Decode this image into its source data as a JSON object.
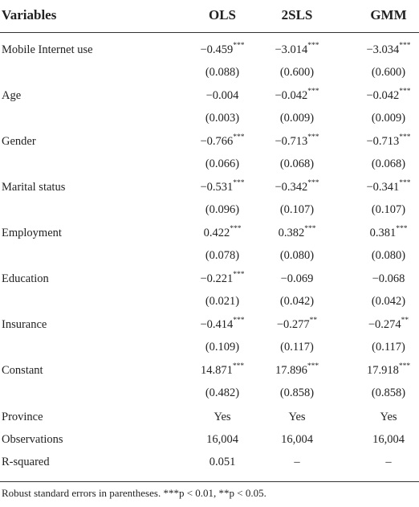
{
  "table": {
    "header": [
      "Variables",
      "OLS",
      "2SLS",
      "GMM"
    ],
    "variables": [
      {
        "name": "Mobile Internet use",
        "coef": [
          {
            "value": "−0.459",
            "stars": "***"
          },
          {
            "value": "−3.014",
            "stars": "***"
          },
          {
            "value": "−3.034",
            "stars": "***"
          }
        ],
        "se": [
          "(0.088)",
          "(0.600)",
          "(0.600)"
        ]
      },
      {
        "name": "Age",
        "coef": [
          {
            "value": "−0.004"
          },
          {
            "value": "−0.042",
            "stars": "***"
          },
          {
            "value": "−0.042",
            "stars": "***"
          }
        ],
        "se": [
          "(0.003)",
          "(0.009)",
          "(0.009)"
        ]
      },
      {
        "name": "Gender",
        "coef": [
          {
            "value": "−0.766",
            "stars": "***"
          },
          {
            "value": "−0.713",
            "stars": "***"
          },
          {
            "value": "−0.713",
            "stars": "***"
          }
        ],
        "se": [
          "(0.066)",
          "(0.068)",
          "(0.068)"
        ]
      },
      {
        "name": "Marital status",
        "coef": [
          {
            "value": "−0.531",
            "stars": "***"
          },
          {
            "value": "−0.342",
            "stars": "***"
          },
          {
            "value": "−0.341",
            "stars": "***"
          }
        ],
        "se": [
          "(0.096)",
          "(0.107)",
          "(0.107)"
        ]
      },
      {
        "name": "Employment",
        "coef": [
          {
            "value": "0.422",
            "stars": "***"
          },
          {
            "value": "0.382",
            "stars": "***"
          },
          {
            "value": "0.381",
            "stars": "***"
          }
        ],
        "se": [
          "(0.078)",
          "(0.080)",
          "(0.080)"
        ]
      },
      {
        "name": "Education",
        "coef": [
          {
            "value": "−0.221",
            "stars": "***"
          },
          {
            "value": "−0.069"
          },
          {
            "value": "−0.068"
          }
        ],
        "se": [
          "(0.021)",
          "(0.042)",
          "(0.042)"
        ]
      },
      {
        "name": "Insurance",
        "coef": [
          {
            "value": "−0.414",
            "stars": "***"
          },
          {
            "value": "−0.277",
            "stars": "**"
          },
          {
            "value": "−0.274",
            "stars": "**"
          }
        ],
        "se": [
          "(0.109)",
          "(0.117)",
          "(0.117)"
        ]
      },
      {
        "name": "Constant",
        "coef": [
          {
            "value": "14.871",
            "stars": "***"
          },
          {
            "value": "17.896",
            "stars": "***"
          },
          {
            "value": "17.918",
            "stars": "***"
          }
        ],
        "se": [
          "(0.482)",
          "(0.858)",
          "(0.858)"
        ]
      }
    ],
    "footer_rows": [
      [
        "Province",
        "Yes",
        "Yes",
        "Yes"
      ],
      [
        "Observations",
        "16,004",
        "16,004",
        "16,004"
      ],
      [
        "R-squared",
        "0.051",
        "–",
        "–"
      ]
    ],
    "note": "Robust standard errors in parentheses. ***p < 0.01, **p < 0.05."
  }
}
